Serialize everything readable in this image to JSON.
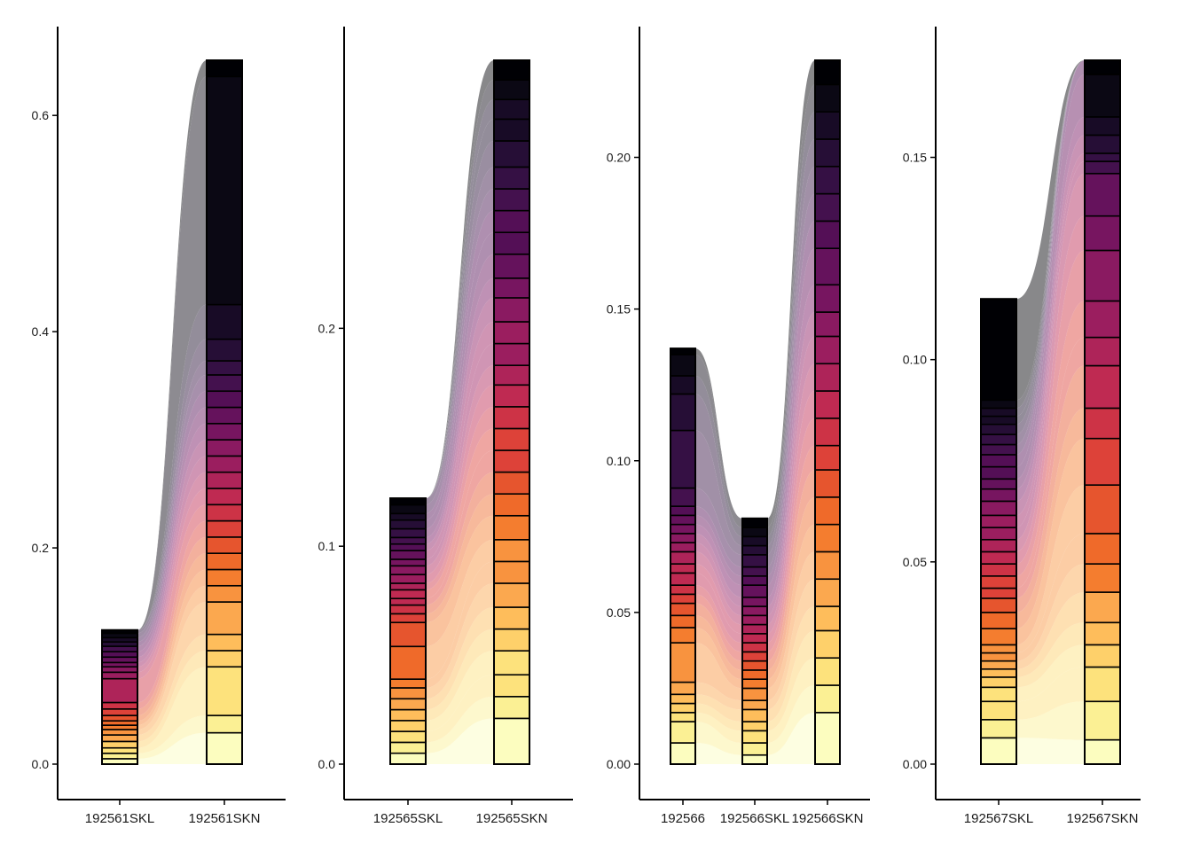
{
  "chart_data": [
    {
      "type": "alluvial",
      "categories": [
        "192561SKL",
        "192561SKN"
      ],
      "ylim": [
        0,
        0.63
      ],
      "yticks": [
        0.0,
        0.2,
        0.4,
        0.6
      ],
      "ytick_labels": [
        "0.0",
        "0.2",
        "0.4",
        "0.6"
      ],
      "xlabel": "",
      "ylabel": "",
      "stacks": [
        [
          0.005,
          0.005,
          0.005,
          0.006,
          0.006,
          0.005,
          0.004,
          0.004,
          0.005,
          0.006,
          0.006,
          0.022,
          0.006,
          0.005,
          0.004,
          0.005,
          0.005,
          0.005,
          0.004,
          0.004,
          0.004,
          0.003
        ],
        [
          0.029,
          0.016,
          0.045,
          0.015,
          0.015,
          0.03,
          0.015,
          0.015,
          0.015,
          0.015,
          0.015,
          0.015,
          0.015,
          0.015,
          0.015,
          0.015,
          0.015,
          0.015,
          0.015,
          0.015,
          0.013,
          0.02,
          0.032,
          0.211,
          0.015
        ]
      ]
    },
    {
      "type": "alluvial",
      "categories": [
        "192565SKL",
        "192565SKN"
      ],
      "ylim": [
        0,
        0.275
      ],
      "yticks": [
        0.0,
        0.1,
        0.2
      ],
      "ytick_labels": [
        "0.0",
        "0.1",
        "0.2"
      ],
      "xlabel": "",
      "ylabel": "",
      "stacks": [
        [
          0.005,
          0.005,
          0.005,
          0.005,
          0.005,
          0.005,
          0.005,
          0.004,
          0.015,
          0.011,
          0.004,
          0.004,
          0.003,
          0.004,
          0.003,
          0.004,
          0.004,
          0.003,
          0.004,
          0.003,
          0.003,
          0.004,
          0.004,
          0.003,
          0.004,
          0.003
        ],
        [
          0.021,
          0.01,
          0.01,
          0.011,
          0.01,
          0.01,
          0.011,
          0.01,
          0.01,
          0.011,
          0.01,
          0.01,
          0.01,
          0.01,
          0.01,
          0.01,
          0.009,
          0.01,
          0.01,
          0.011,
          0.009,
          0.011,
          0.01,
          0.01,
          0.01,
          0.01,
          0.012,
          0.01,
          0.009,
          0.009,
          0.009
        ]
      ]
    },
    {
      "type": "alluvial",
      "categories": [
        "192566",
        "192566SKL",
        "192566SKN"
      ],
      "ylim": [
        -0.004,
        0.247
      ],
      "yticks": [
        0.0,
        0.05,
        0.1,
        0.15,
        0.2
      ],
      "ytick_labels": [
        "0.00",
        "0.05",
        "0.10",
        "0.15",
        "0.20"
      ],
      "xlabel": "",
      "ylabel": "",
      "stacks": [
        [
          0.007,
          0.007,
          0.003,
          0.003,
          0.003,
          0.004,
          0.013,
          0.005,
          0.004,
          0.004,
          0.003,
          0.003,
          0.004,
          0.003,
          0.004,
          0.003,
          0.003,
          0.003,
          0.003,
          0.003,
          0.006,
          0.019,
          0.012,
          0.006,
          0.007,
          0.002
        ],
        [
          0.003,
          0.004,
          0.004,
          0.003,
          0.004,
          0.003,
          0.004,
          0.003,
          0.003,
          0.003,
          0.003,
          0.003,
          0.003,
          0.003,
          0.003,
          0.003,
          0.003,
          0.004,
          0.003,
          0.003,
          0.004,
          0.003,
          0.003,
          0.003,
          0.003
        ],
        [
          0.017,
          0.009,
          0.009,
          0.009,
          0.008,
          0.009,
          0.009,
          0.009,
          0.009,
          0.009,
          0.008,
          0.009,
          0.009,
          0.009,
          0.009,
          0.008,
          0.009,
          0.012,
          0.009,
          0.009,
          0.009,
          0.009,
          0.009,
          0.009,
          0.008
        ]
      ]
    },
    {
      "type": "alluvial",
      "categories": [
        "192567SKL",
        "192567SKN"
      ],
      "ylim": [
        -0.0075,
        0.195
      ],
      "yticks": [
        0.0,
        0.05,
        0.1,
        0.15
      ],
      "ytick_labels": [
        "0.00",
        "0.05",
        "0.10",
        "0.15"
      ],
      "xlabel": "",
      "ylabel": "",
      "stacks": [
        [
          0.0065,
          0.0045,
          0.0045,
          0.0035,
          0.0025,
          0.002,
          0.002,
          0.002,
          0.002,
          0.004,
          0.004,
          0.0035,
          0.0025,
          0.003,
          0.003,
          0.003,
          0.003,
          0.003,
          0.003,
          0.0035,
          0.003,
          0.0025,
          0.003,
          0.003,
          0.0025,
          0.0025,
          0.0025,
          0.002,
          0.002,
          0.002,
          0.025
        ],
        [
          0.006,
          0.0095,
          0.0085,
          0.0055,
          0.0055,
          0.0075,
          0.007,
          0.0075,
          0.012,
          0.0115,
          0.0075,
          0.0105,
          0.007,
          0.009,
          0.0125,
          0.0085,
          0.0105,
          0.003,
          0.002,
          0.0045,
          0.0045,
          0.0105,
          0.0035
        ]
      ]
    }
  ],
  "palette": [
    "#fcfdbf",
    "#fbf094",
    "#fde27c",
    "#fed06a",
    "#febd5b",
    "#fba84f",
    "#f8933f",
    "#f47d2f",
    "#ef6a2a",
    "#e6552e",
    "#dd4239",
    "#cd3346",
    "#bf2a52",
    "#ae2459",
    "#9b1e5f",
    "#8a1a61",
    "#771560",
    "#65125c",
    "#540f56",
    "#44114e",
    "#351044",
    "#260e36",
    "#180b26",
    "#0b0814",
    "#000004"
  ]
}
